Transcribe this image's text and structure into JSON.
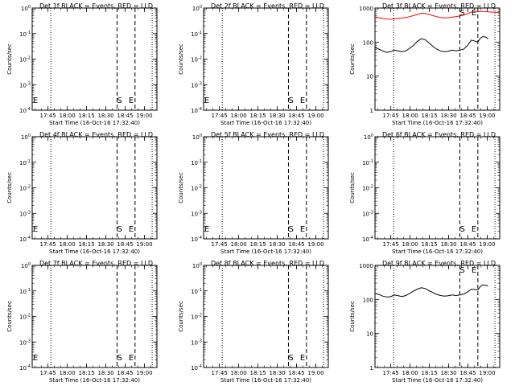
{
  "page": {
    "common_xlabel": "Start Time (16-Oct-16 17:32:40)",
    "common_ylabel": "Counts/sec",
    "x_tick_labels": [
      "17:45",
      "18:00",
      "18:15",
      "18:30",
      "18:45",
      "19:00"
    ],
    "marker_S": "S",
    "marker_E": "E",
    "event_color": "#000000",
    "lld_color": "#ff0000"
  },
  "chart_data": [
    {
      "type": "line",
      "title": "Det 1f BLACK = Events, RED = LLD",
      "xlabel": "Start Time (16-Oct-16 17:32:40)",
      "ylabel": "Counts/sec",
      "x_tick_values_min": [
        12.3,
        27.3,
        42.3,
        57.3,
        72.3,
        87.3
      ],
      "x_tick_labels": [
        "17:45",
        "18:00",
        "18:15",
        "18:30",
        "18:45",
        "19:00"
      ],
      "xlim_min": [
        0,
        97
      ],
      "y_scale": "log",
      "ylim": [
        1.0,
        0.0001
      ],
      "y_tick_labels": [
        "10^-4",
        "10^-3",
        "10^-2",
        "10^-1",
        "10^0"
      ],
      "y_tick_values": [
        0.0001,
        0.001,
        0.01,
        0.1,
        1.0
      ],
      "vlines_dotted_min": [
        14.5,
        93.3
      ],
      "vlines_dashed_min": [
        66.0,
        80.0
      ],
      "markers": [
        {
          "text": "S",
          "x": 68.0
        },
        {
          "text": "E",
          "x": 77.0
        }
      ],
      "start_marker": "E",
      "series": []
    },
    {
      "type": "line",
      "title": "Det 2f BLACK = Events, RED = LLD",
      "xlabel": "Start Time (16-Oct-16 17:32:40)",
      "ylabel": "Counts/sec",
      "x_tick_values_min": [
        12.3,
        27.3,
        42.3,
        57.3,
        72.3,
        87.3
      ],
      "x_tick_labels": [
        "17:45",
        "18:00",
        "18:15",
        "18:30",
        "18:45",
        "19:00"
      ],
      "xlim_min": [
        0,
        97
      ],
      "y_scale": "log",
      "ylim": [
        1.0,
        0.0001
      ],
      "y_tick_labels": [
        "10^-4",
        "10^-3",
        "10^-2",
        "10^-1",
        "10^0"
      ],
      "y_tick_values": [
        0.0001,
        0.001,
        0.01,
        0.1,
        1.0
      ],
      "vlines_dotted_min": [
        14.5,
        93.3
      ],
      "vlines_dashed_min": [
        66.0,
        80.0
      ],
      "markers": [
        {
          "text": "S",
          "x": 68.0
        },
        {
          "text": "E",
          "x": 77.0
        }
      ],
      "start_marker": "E",
      "series": []
    },
    {
      "type": "line",
      "title": "Det 3f BLACK = Events, RED = LLD",
      "xlabel": "Start Time (16-Oct-16 17:32:40)",
      "ylabel": "Counts/sec",
      "x_tick_values_min": [
        12.3,
        27.3,
        42.3,
        57.3,
        72.3,
        87.3
      ],
      "x_tick_labels": [
        "17:45",
        "18:00",
        "18:15",
        "18:30",
        "18:45",
        "19:00"
      ],
      "xlim_min": [
        0,
        97
      ],
      "y_scale": "log",
      "ylim": [
        1,
        1000
      ],
      "y_tick_labels": [
        "1",
        "10",
        "100",
        "1000"
      ],
      "y_tick_values": [
        1,
        10,
        100,
        1000
      ],
      "vlines_dotted_min": [
        14.5,
        93.3
      ],
      "vlines_dashed_min": [
        66.0,
        80.0
      ],
      "markers": [
        {
          "text": "S",
          "x": 68.0
        },
        {
          "text": "E",
          "x": 77.0
        }
      ],
      "series": [
        {
          "color": "#000000",
          "x": [
            0,
            3,
            6,
            9,
            12,
            15,
            18,
            21,
            24,
            27,
            30,
            33,
            36,
            39,
            42,
            45,
            48,
            51,
            54,
            57,
            60,
            63,
            66,
            69,
            72,
            75,
            80,
            82,
            84,
            86,
            88
          ],
          "y": [
            70,
            62,
            55,
            50,
            52,
            58,
            55,
            52,
            55,
            66,
            80,
            105,
            125,
            118,
            95,
            75,
            62,
            55,
            52,
            54,
            58,
            55,
            58,
            62,
            80,
            115,
            100,
            130,
            145,
            140,
            125
          ]
        },
        {
          "color": "#ff0000",
          "x": [
            0,
            3,
            6,
            9,
            12,
            15,
            18,
            21,
            24,
            27,
            30,
            33,
            36,
            39,
            42,
            45,
            48,
            51,
            54,
            57,
            60,
            63,
            66,
            69,
            72,
            75,
            80,
            82,
            84,
            86,
            88,
            91,
            94,
            97
          ],
          "y": [
            560,
            520,
            490,
            475,
            470,
            480,
            495,
            510,
            530,
            560,
            600,
            650,
            700,
            690,
            650,
            600,
            560,
            530,
            515,
            520,
            540,
            560,
            590,
            620,
            680,
            760,
            780,
            800,
            790,
            780,
            770,
            760,
            755,
            750
          ]
        }
      ]
    },
    {
      "type": "line",
      "title": "Det 4f BLACK = Events, RED = LLD",
      "xlabel": "Start Time (16-Oct-16 17:32:40)",
      "ylabel": "Counts/sec",
      "x_tick_values_min": [
        12.3,
        27.3,
        42.3,
        57.3,
        72.3,
        87.3
      ],
      "x_tick_labels": [
        "17:45",
        "18:00",
        "18:15",
        "18:30",
        "18:45",
        "19:00"
      ],
      "xlim_min": [
        0,
        97
      ],
      "y_scale": "log",
      "ylim": [
        1.0,
        0.0001
      ],
      "y_tick_labels": [
        "10^-4",
        "10^-3",
        "10^-2",
        "10^-1",
        "10^0"
      ],
      "y_tick_values": [
        0.0001,
        0.001,
        0.01,
        0.1,
        1.0
      ],
      "vlines_dotted_min": [
        14.5,
        93.3
      ],
      "vlines_dashed_min": [
        66.0,
        80.0
      ],
      "markers": [
        {
          "text": "S",
          "x": 68.0
        },
        {
          "text": "E",
          "x": 77.0
        }
      ],
      "start_marker": "E",
      "series": []
    },
    {
      "type": "line",
      "title": "Det 5f BLACK = Events, RED = LLD",
      "xlabel": "Start Time (16-Oct-16 17:32:40)",
      "ylabel": "Counts/sec",
      "x_tick_values_min": [
        12.3,
        27.3,
        42.3,
        57.3,
        72.3,
        87.3
      ],
      "x_tick_labels": [
        "17:45",
        "18:00",
        "18:15",
        "18:30",
        "18:45",
        "19:00"
      ],
      "xlim_min": [
        0,
        97
      ],
      "y_scale": "log",
      "ylim": [
        1.0,
        0.0001
      ],
      "y_tick_labels": [
        "10^-4",
        "10^-3",
        "10^-2",
        "10^-1",
        "10^0"
      ],
      "y_tick_values": [
        0.0001,
        0.001,
        0.01,
        0.1,
        1.0
      ],
      "vlines_dotted_min": [
        14.5,
        93.3
      ],
      "vlines_dashed_min": [
        66.0,
        80.0
      ],
      "markers": [
        {
          "text": "S",
          "x": 68.0
        },
        {
          "text": "E",
          "x": 77.0
        }
      ],
      "start_marker": "E",
      "series": []
    },
    {
      "type": "line",
      "title": "Det 6f BLACK = Events, RED = LLD",
      "xlabel": "Start Time (16-Oct-16 17:32:40)",
      "ylabel": "Counts/sec",
      "x_tick_values_min": [
        12.3,
        27.3,
        42.3,
        57.3,
        72.3,
        87.3
      ],
      "x_tick_labels": [
        "17:45",
        "18:00",
        "18:15",
        "18:30",
        "18:45",
        "19:00"
      ],
      "xlim_min": [
        0,
        97
      ],
      "y_scale": "log",
      "ylim": [
        1.0,
        0.0001
      ],
      "y_tick_labels": [
        "10^-4",
        "10^-3",
        "10^-2",
        "10^-1",
        "10^0"
      ],
      "y_tick_values": [
        0.0001,
        0.001,
        0.01,
        0.1,
        1.0
      ],
      "vlines_dotted_min": [
        14.5,
        93.3
      ],
      "vlines_dashed_min": [
        66.0,
        80.0
      ],
      "markers": [
        {
          "text": "S",
          "x": 68.0
        },
        {
          "text": "E",
          "x": 77.0
        }
      ],
      "series": []
    },
    {
      "type": "line",
      "title": "Det 7f BLACK = Events, RED = LLD",
      "xlabel": "Start Time (16-Oct-16 17:32:40)",
      "ylabel": "Counts/sec",
      "x_tick_values_min": [
        12.3,
        27.3,
        42.3,
        57.3,
        72.3,
        87.3
      ],
      "x_tick_labels": [
        "17:45",
        "18:00",
        "18:15",
        "18:30",
        "18:45",
        "19:00"
      ],
      "xlim_min": [
        0,
        97
      ],
      "y_scale": "log",
      "ylim": [
        1.0,
        0.0001
      ],
      "y_tick_labels": [
        "10^-4",
        "10^-3",
        "10^-2",
        "10^-1",
        "10^0"
      ],
      "y_tick_values": [
        0.0001,
        0.001,
        0.01,
        0.1,
        1.0
      ],
      "vlines_dotted_min": [
        14.5,
        93.3
      ],
      "vlines_dashed_min": [
        66.0,
        80.0
      ],
      "markers": [
        {
          "text": "S",
          "x": 68.0
        },
        {
          "text": "E",
          "x": 77.0
        }
      ],
      "start_marker": "E",
      "series": []
    },
    {
      "type": "line",
      "title": "Det 8f BLACK = Events, RED = LLD",
      "xlabel": "Start Time (16-Oct-16 17:32:40)",
      "ylabel": "Counts/sec",
      "x_tick_values_min": [
        12.3,
        27.3,
        42.3,
        57.3,
        72.3,
        87.3
      ],
      "x_tick_labels": [
        "17:45",
        "18:00",
        "18:15",
        "18:30",
        "18:45",
        "19:00"
      ],
      "xlim_min": [
        0,
        97
      ],
      "y_scale": "log",
      "ylim": [
        1.0,
        0.0001
      ],
      "y_tick_labels": [
        "10^-4",
        "10^-3",
        "10^-2",
        "10^-1",
        "10^0"
      ],
      "y_tick_values": [
        0.0001,
        0.001,
        0.01,
        0.1,
        1.0
      ],
      "vlines_dotted_min": [
        14.5,
        93.3
      ],
      "vlines_dashed_min": [
        66.0,
        80.0
      ],
      "markers": [
        {
          "text": "S",
          "x": 68.0
        },
        {
          "text": "E",
          "x": 77.0
        }
      ],
      "series": []
    },
    {
      "type": "line",
      "title": "Det 9f BLACK = Events, RED = LLD",
      "xlabel": "Start Time (16-Oct-16 17:32:40)",
      "ylabel": "Counts/sec",
      "x_tick_values_min": [
        12.3,
        27.3,
        42.3,
        57.3,
        72.3,
        87.3
      ],
      "x_tick_labels": [
        "17:45",
        "18:00",
        "18:15",
        "18:30",
        "18:45",
        "19:00"
      ],
      "xlim_min": [
        0,
        97
      ],
      "y_scale": "log",
      "ylim": [
        1,
        1000
      ],
      "y_tick_labels": [
        "1",
        "10",
        "100",
        "1000"
      ],
      "y_tick_values": [
        1,
        10,
        100,
        1000
      ],
      "vlines_dotted_min": [
        14.5,
        93.3
      ],
      "vlines_dashed_min": [
        66.0,
        80.0
      ],
      "markers": [
        {
          "text": "S",
          "x": 68.0
        },
        {
          "text": "E",
          "x": 77.0
        }
      ],
      "series": [
        {
          "color": "#000000",
          "x": [
            0,
            3,
            6,
            9,
            12,
            15,
            18,
            21,
            24,
            27,
            30,
            33,
            36,
            39,
            42,
            45,
            48,
            51,
            54,
            57,
            60,
            63,
            66,
            69,
            72,
            75,
            80,
            82,
            84,
            86,
            88
          ],
          "y": [
            150,
            140,
            125,
            118,
            120,
            135,
            128,
            122,
            130,
            150,
            175,
            200,
            220,
            210,
            180,
            160,
            140,
            130,
            125,
            128,
            135,
            130,
            135,
            145,
            165,
            200,
            190,
            240,
            270,
            260,
            250
          ]
        }
      ]
    }
  ]
}
